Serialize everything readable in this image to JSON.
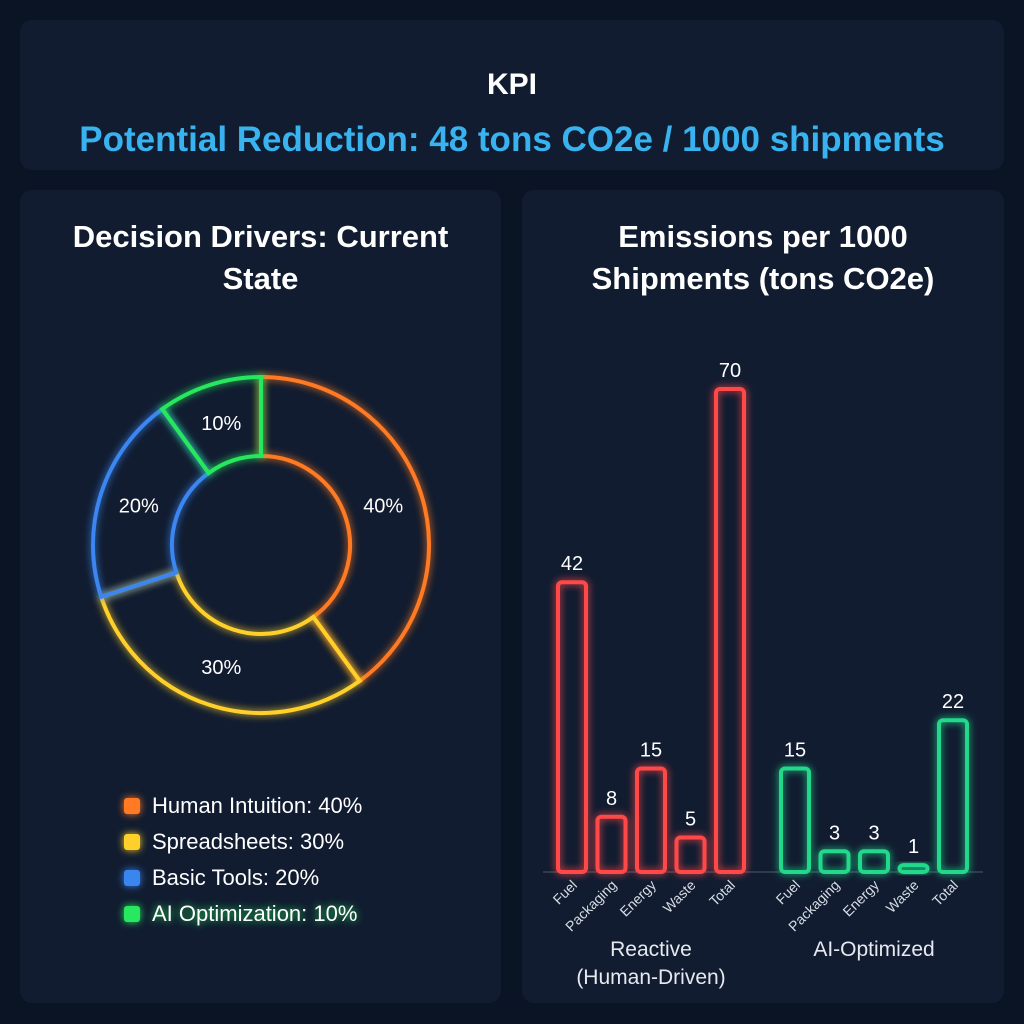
{
  "kpi": {
    "title": "KPI",
    "value": "Potential Reduction: 48 tons CO2e / 1000 shipments",
    "accent": "#38b3ef"
  },
  "chart_data": [
    {
      "type": "pie",
      "variant": "donut",
      "title_line1": "Decision Drivers: Current",
      "title_line2": "State",
      "slices": [
        {
          "label": "Human Intuition",
          "value": 40,
          "display": "40%",
          "legend": "Human Intuition: 40%",
          "color": "#ff7a22"
        },
        {
          "label": "Spreadsheets",
          "value": 30,
          "display": "30%",
          "legend": "Spreadsheets: 30%",
          "color": "#ffd02a"
        },
        {
          "label": "Basic Tools",
          "value": 20,
          "display": "20%",
          "legend": "Basic Tools: 20%",
          "color": "#3a86f0"
        },
        {
          "label": "AI Optimization",
          "value": 10,
          "display": "10%",
          "legend": "AI Optimization: 10%",
          "color": "#27e85e"
        }
      ],
      "legend_position": "bottom"
    },
    {
      "type": "bar",
      "title_line1": "Emissions per 1000",
      "title_line2": "Shipments (tons CO2e)",
      "ylim": [
        0,
        70
      ],
      "grid": false,
      "groups": [
        {
          "name_line1": "Reactive",
          "name_line2": "(Human-Driven)",
          "color": "#ff4a4a",
          "categories": [
            "Fuel",
            "Packaging",
            "Energy",
            "Waste",
            "Total"
          ],
          "values": [
            42,
            8,
            15,
            5,
            70
          ]
        },
        {
          "name_line1": "AI-Optimized",
          "name_line2": "",
          "color": "#20d88a",
          "categories": [
            "Fuel",
            "Packaging",
            "Energy",
            "Waste",
            "Total"
          ],
          "values": [
            15,
            3,
            3,
            1,
            22
          ]
        }
      ]
    }
  ]
}
